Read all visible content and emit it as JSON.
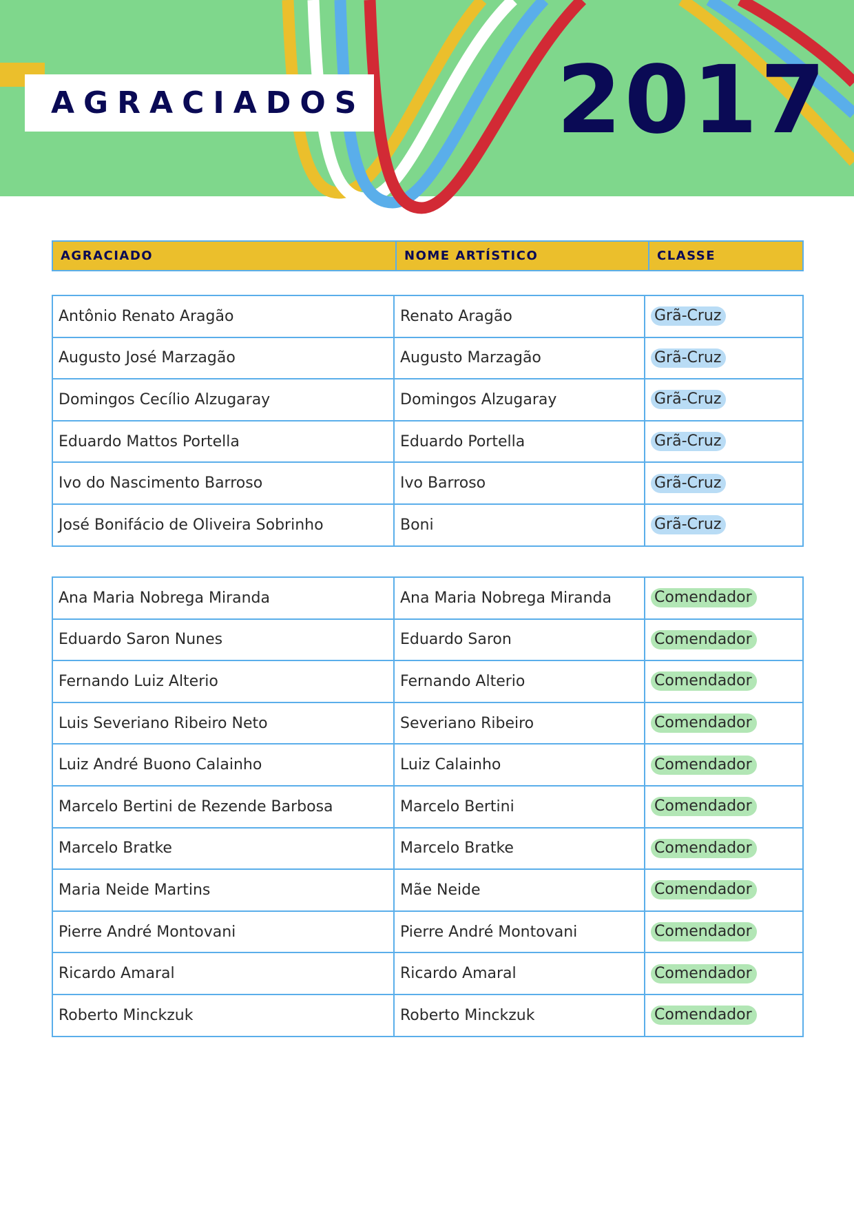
{
  "header": {
    "title": "AGRACIADOS",
    "year": "2017"
  },
  "colors": {
    "banner": "#7fd78c",
    "accent_yellow": "#ebbf2c",
    "navy": "#0a0a55",
    "grid": "#5aaeea",
    "badge_gra_cruz": "#b9dcf5",
    "badge_comendador": "#b2e6b5"
  },
  "table": {
    "columns": [
      "AGRACIADO",
      "NOME ARTÍSTICO",
      "CLASSE"
    ],
    "groups": [
      {
        "rows": [
          [
            "Antônio Renato Aragão",
            "Renato Aragão",
            "Grã-Cruz"
          ],
          [
            "Augusto José Marzagão",
            "Augusto Marzagão",
            "Grã-Cruz"
          ],
          [
            "Domingos Cecílio Alzugaray",
            "Domingos Alzugaray",
            "Grã-Cruz"
          ],
          [
            "Eduardo Mattos Portella",
            "Eduardo Portella",
            "Grã-Cruz"
          ],
          [
            "Ivo do Nascimento Barroso",
            "Ivo Barroso",
            "Grã-Cruz"
          ],
          [
            "José Bonifácio de Oliveira Sobrinho",
            "Boni",
            "Grã-Cruz"
          ]
        ]
      },
      {
        "rows": [
          [
            "Ana Maria Nobrega Miranda",
            "Ana Maria Nobrega Miranda",
            "Comendador"
          ],
          [
            "Eduardo Saron Nunes",
            "Eduardo Saron",
            "Comendador"
          ],
          [
            "Fernando Luiz Alterio",
            "Fernando Alterio",
            "Comendador"
          ],
          [
            "Luis Severiano Ribeiro Neto",
            "Severiano Ribeiro",
            "Comendador"
          ],
          [
            "Luiz André Buono Calainho",
            "Luiz Calainho",
            "Comendador"
          ],
          [
            "Marcelo Bertini de Rezende Barbosa",
            "Marcelo Bertini",
            "Comendador"
          ],
          [
            "Marcelo Bratke",
            "Marcelo Bratke",
            "Comendador"
          ],
          [
            "Maria Neide Martins",
            "Mãe Neide",
            "Comendador"
          ],
          [
            "Pierre André Montovani",
            "Pierre André Montovani",
            "Comendador"
          ],
          [
            "Ricardo Amaral",
            "Ricardo Amaral",
            "Comendador"
          ],
          [
            "Roberto Minckzuk",
            "Roberto Minckzuk",
            "Comendador"
          ]
        ]
      }
    ]
  }
}
